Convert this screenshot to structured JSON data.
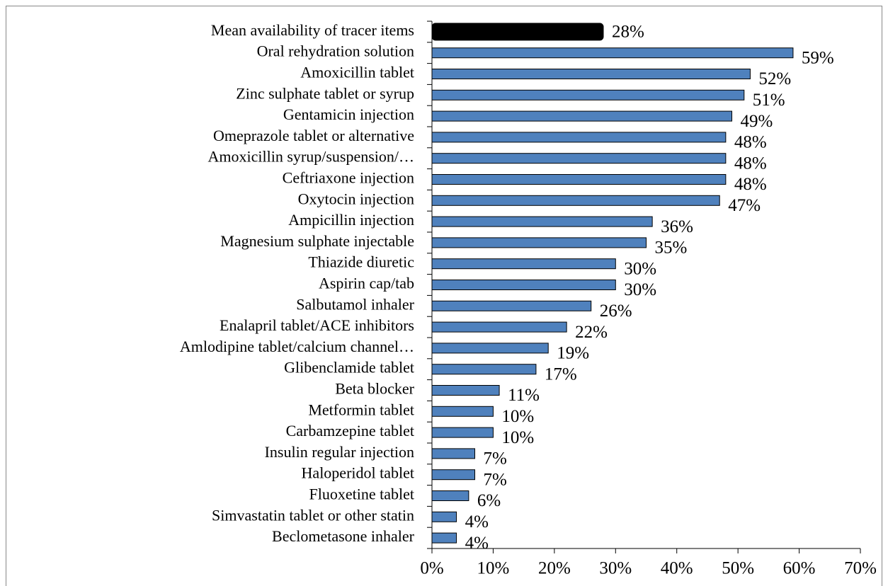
{
  "chart_data": {
    "type": "hbar",
    "categories": [
      "Mean availability of tracer items",
      "Oral rehydration solution",
      "Amoxicillin tablet",
      "Zinc sulphate tablet or syrup",
      "Gentamicin injection",
      "Omeprazole tablet or alternative",
      "Amoxicillin syrup/suspension/…",
      "Ceftriaxone injection",
      "Oxytocin injection",
      "Ampicillin injection",
      "Magnesium sulphate injectable",
      "Thiazide diuretic",
      "Aspirin cap/tab",
      "Salbutamol inhaler",
      "Enalapril tablet/ACE inhibitors",
      "Amlodipine tablet/calcium channel…",
      "Glibenclamide tablet",
      "Beta blocker",
      "Metformin tablet",
      "Carbamzepine tablet",
      "Insulin regular injection",
      "Haloperidol tablet",
      "Fluoxetine tablet",
      "Simvastatin tablet or other statin",
      "Beclometasone inhaler"
    ],
    "values": [
      28,
      59,
      52,
      51,
      49,
      48,
      48,
      48,
      47,
      36,
      35,
      30,
      30,
      26,
      22,
      19,
      17,
      11,
      10,
      10,
      7,
      7,
      6,
      4,
      4
    ],
    "value_labels": [
      "28%",
      "59%",
      "52%",
      "51%",
      "49%",
      "48%",
      "48%",
      "48%",
      "47%",
      "36%",
      "35%",
      "30%",
      "30%",
      "26%",
      "22%",
      "19%",
      "17%",
      "11%",
      "10%",
      "10%",
      "7%",
      "7%",
      "6%",
      "4%",
      "4%"
    ],
    "colors": [
      "#000000",
      "#4f81bd",
      "#4f81bd",
      "#4f81bd",
      "#4f81bd",
      "#4f81bd",
      "#4f81bd",
      "#4f81bd",
      "#4f81bd",
      "#4f81bd",
      "#4f81bd",
      "#4f81bd",
      "#4f81bd",
      "#4f81bd",
      "#4f81bd",
      "#4f81bd",
      "#4f81bd",
      "#4f81bd",
      "#4f81bd",
      "#4f81bd",
      "#4f81bd",
      "#4f81bd",
      "#4f81bd",
      "#4f81bd",
      "#4f81bd"
    ],
    "xlim": [
      0,
      70
    ],
    "xticks": [
      {
        "value": 0,
        "label": "0%"
      },
      {
        "value": 10,
        "label": "10%"
      },
      {
        "value": 20,
        "label": "20%"
      },
      {
        "value": 30,
        "label": "30%"
      },
      {
        "value": 40,
        "label": "40%"
      },
      {
        "value": 50,
        "label": "50%"
      },
      {
        "value": 60,
        "label": "60%"
      },
      {
        "value": 70,
        "label": "70%"
      }
    ],
    "grid": false
  }
}
